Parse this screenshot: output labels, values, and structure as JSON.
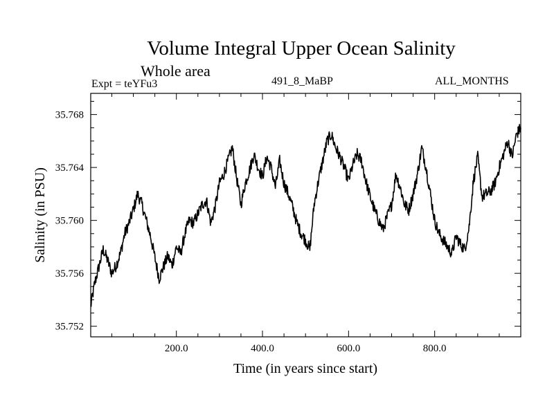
{
  "header": {
    "title": "Volume Integral Upper Ocean Salinity",
    "subtitle": "Whole area",
    "left_label": "Expt = teYFu3",
    "center_label": "491_8_MaBP",
    "right_label": "ALL_MONTHS"
  },
  "chart_data": {
    "type": "line",
    "title": "Volume Integral Upper Ocean Salinity",
    "xlabel": "Time (in years since start)",
    "ylabel": "Salinity (in PSU)",
    "xlim": [
      1,
      1000
    ],
    "ylim": [
      35.7512,
      35.7696
    ],
    "grid": false,
    "xticks": [
      200,
      400,
      600,
      800
    ],
    "xtick_labels": [
      "200.0",
      "400.0",
      "600.0",
      "800.0"
    ],
    "yticks": [
      35.752,
      35.756,
      35.76,
      35.764,
      35.768
    ],
    "ytick_labels": [
      "35.752",
      "35.756",
      "35.760",
      "35.764",
      "35.768"
    ],
    "series": [
      {
        "name": "Salinity",
        "x": [
          1,
          10,
          20,
          30,
          40,
          50,
          60,
          70,
          80,
          90,
          100,
          110,
          120,
          130,
          140,
          150,
          160,
          170,
          180,
          190,
          200,
          210,
          220,
          230,
          240,
          250,
          260,
          270,
          280,
          290,
          300,
          310,
          320,
          330,
          340,
          350,
          360,
          370,
          380,
          390,
          400,
          410,
          420,
          430,
          440,
          450,
          460,
          470,
          480,
          490,
          500,
          510,
          520,
          530,
          540,
          550,
          560,
          570,
          580,
          590,
          600,
          610,
          620,
          630,
          640,
          650,
          660,
          670,
          680,
          690,
          700,
          710,
          720,
          730,
          740,
          750,
          760,
          770,
          780,
          790,
          800,
          810,
          820,
          830,
          840,
          850,
          860,
          870,
          880,
          890,
          900,
          910,
          920,
          930,
          940,
          950,
          960,
          970,
          980,
          990,
          1000
        ],
        "values": [
          35.7535,
          35.7552,
          35.7565,
          35.7578,
          35.757,
          35.756,
          35.7566,
          35.7575,
          35.759,
          35.7598,
          35.7608,
          35.762,
          35.7612,
          35.76,
          35.7588,
          35.7572,
          35.7556,
          35.7565,
          35.7573,
          35.7566,
          35.758,
          35.7575,
          35.759,
          35.76,
          35.7598,
          35.7605,
          35.7612,
          35.7615,
          35.7598,
          35.761,
          35.7628,
          35.7635,
          35.7645,
          35.7655,
          35.7632,
          35.7612,
          35.7628,
          35.7638,
          35.765,
          35.764,
          35.7633,
          35.7648,
          35.764,
          35.7625,
          35.7645,
          35.7628,
          35.762,
          35.761,
          35.7598,
          35.759,
          35.7585,
          35.7578,
          35.7612,
          35.763,
          35.7645,
          35.766,
          35.7665,
          35.7655,
          35.7648,
          35.764,
          35.763,
          35.7642,
          35.765,
          35.7645,
          35.763,
          35.7618,
          35.7608,
          35.76,
          35.7593,
          35.7603,
          35.7612,
          35.7635,
          35.7625,
          35.7612,
          35.7608,
          35.762,
          35.7635,
          35.7655,
          35.764,
          35.762,
          35.76,
          35.759,
          35.7585,
          35.758,
          35.7575,
          35.7588,
          35.7582,
          35.7578,
          35.7595,
          35.763,
          35.7648,
          35.7618,
          35.762,
          35.7622,
          35.7628,
          35.764,
          35.765,
          35.766,
          35.7648,
          35.7665,
          35.767
        ]
      }
    ]
  }
}
